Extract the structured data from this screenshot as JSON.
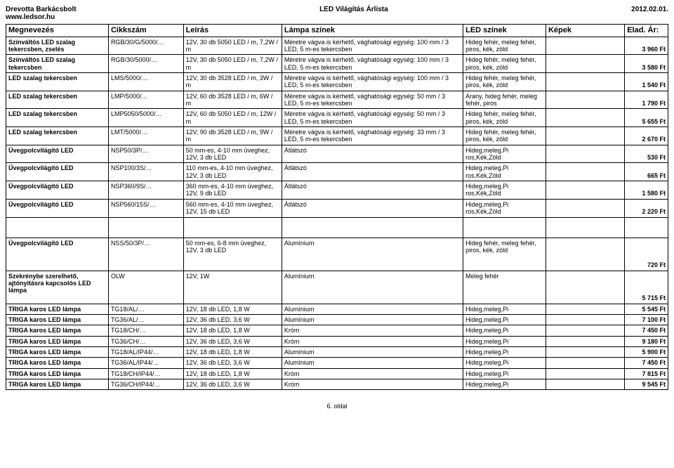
{
  "header": {
    "company": "Drevotta Barkácsbolt",
    "website": "www.ledsor.hu",
    "title": "LED Világítás Árlista",
    "date": "2012.02.01."
  },
  "columns": {
    "c1": "Megnevezés",
    "c2": "Cikkszám",
    "c3": "Leírás",
    "c4": "Lámpa színek",
    "c5": "LED színek",
    "c6": "Képek",
    "c7": "Elad. Ár:"
  },
  "rows": [
    {
      "meg": "Színváltós LED szalag tekercsben, zselés",
      "cikk": "RGB/30/G/5000/…",
      "leiras": "12V, 30 db 5050 LED / m, 7,2W / m",
      "lampa": "Méretre vágva is kérhető, vághatósági egység: 100 mm / 3 LED, 5 m-es tekercsben",
      "led": "Hideg fehér, meleg fehér, piros, kék, zöld",
      "ar": "3 960 Ft"
    },
    {
      "meg": "Színváltós LED szalag tekercsben",
      "cikk": "RGB/30/5000/…",
      "leiras": "12V, 30 db 5050 LED / m, 7,2W / m",
      "lampa": "Méretre vágva is kérhető, vághatósági egység: 100 mm / 3 LED, 5 m-es tekercsben",
      "led": "Hideg fehér, meleg fehér, piros, kék, zöld",
      "ar": "3 580 Ft"
    },
    {
      "meg": "LED szalag tekercsben",
      "cikk": "LMS/5000/…",
      "leiras": "12V, 30 db 3528 LED / m, 3W / m",
      "lampa": "Méretre vágva is kérhető, vághatósági egység: 100 mm / 3 LED, 5 m-es tekercsben",
      "led": "Hideg fehér, meleg fehér, piros, kék, zöld",
      "ar": "1 540 Ft"
    },
    {
      "meg": "LED szalag tekercsben",
      "cikk": "LMP/5000/…",
      "leiras": "12V, 60 db 3528 LED / m, 6W / m",
      "lampa": "Méretre vágva is kérhető, vághatósági egység: 50 mm / 3 LED, 5 m-es tekercsben",
      "led": "Arany, hideg fehér, meleg fehér, piros",
      "ar": "1 790 Ft"
    },
    {
      "meg": "LED szalag tekercsben",
      "cikk": "LMP5050/5000/…",
      "leiras": "12V, 60 db 5050 LED / m, 12W / m",
      "lampa": "Méretre vágva is kérhető, vághatósági egység: 50 mm / 3 LED, 5 m-es tekercsben",
      "led": "Hideg fehér, meleg fehér, piros, kék, zöld",
      "ar": "5 655 Ft"
    },
    {
      "meg": "LED szalag tekercsben",
      "cikk": "LMT/5000/…",
      "leiras": "12V, 90 db 3528 LED / m, 9W / m",
      "lampa": "Méretre vágva is kérhető, vághatósági egység: 33 mm / 3 LED, 5 m-es tekercsben",
      "led": "Hideg fehér, meleg fehér, piros, kék, zöld",
      "ar": "2 670 Ft"
    },
    {
      "meg": "Üvegpolcvilágító LED",
      "cikk": "NSP50/3P/…",
      "leiras": "50 mm-es, 4-10 mm üveghez, 12V, 3 db LED",
      "lampa": "Átlátszó",
      "led": "Hideg,meleg,Pi ros,Kék,Zöld",
      "ar": "530 Ft"
    },
    {
      "meg": "Üvegpolcvilágító LED",
      "cikk": "NSP100/3S/…",
      "leiras": "110 mm-es, 4-10 mm üveghez, 12V, 3 db LED",
      "lampa": "Átlátszó",
      "led": "Hideg,meleg,Pi ros,Kék,Zöld",
      "ar": "665 Ft"
    },
    {
      "meg": "Üvegpolcvilágító LED",
      "cikk": "NSP360/9S/…",
      "leiras": "360 mm-es, 4-10 mm üveghez, 12V, 9 db LED",
      "lampa": "Átlátszó",
      "led": "Hideg,meleg,Pi ros,Kék,Zöld",
      "ar": "1 580 Ft"
    },
    {
      "meg": "Üvegpolcvilágító LED",
      "cikk": "NSP560/15S/…",
      "leiras": "560 mm-es, 4-10 mm üveghez, 12V, 15 db LED",
      "lampa": "Átlátszó",
      "led": "Hideg,meleg,Pi ros,Kék,Zöld",
      "ar": "2 220 Ft"
    }
  ],
  "midRows": [
    {
      "meg": "Üvegpolcvilágító LED",
      "cikk": "NSS/50/3P/…",
      "leiras": "50 mm-es, 6-8 mm üveghez, 12V, 3 db LED",
      "lampa": "Alumínium",
      "led": "Hideg fehér, meleg fehér, piros, kék, zöld",
      "ar": "720 Ft"
    },
    {
      "meg": "Szekrénybe szerelhető, ajtónyitásra kapcsolós LED lámpa",
      "cikk": "OLW",
      "leiras": "12V, 1W",
      "lampa": "Alumínium",
      "led": "Meleg fehér",
      "ar": "5 715 Ft"
    }
  ],
  "botRows": [
    {
      "meg": "TRIGA karos LED lámpa",
      "cikk": "TG18/AL/…",
      "leiras": "12V, 18 db LED, 1,8 W",
      "lampa": "Alumínium",
      "led": "Hideg,meleg,Pi",
      "ar": "5 545 Ft"
    },
    {
      "meg": "TRIGA karos LED lámpa",
      "cikk": "TG36/AL/…",
      "leiras": "12V, 36 db LED, 3,6 W",
      "lampa": "Alumínium",
      "led": "Hideg,meleg,Pi",
      "ar": "7 100 Ft"
    },
    {
      "meg": "TRIGA karos LED lámpa",
      "cikk": "TG18/CH/…",
      "leiras": "12V, 18 db LED, 1,8 W",
      "lampa": "Króm",
      "led": "Hideg,meleg,Pi",
      "ar": "7 450 Ft"
    },
    {
      "meg": "TRIGA karos LED lámpa",
      "cikk": "TG36/CH/…",
      "leiras": "12V, 36 db LED, 3,6 W",
      "lampa": "Króm",
      "led": "Hideg,meleg,Pi",
      "ar": "9 180 Ft"
    },
    {
      "meg": "TRIGA karos LED lámpa",
      "cikk": "TG18/AL/IP44/…",
      "leiras": "12V, 18 db LED, 1,8 W",
      "lampa": "Alumínium",
      "led": "Hideg,meleg,Pi",
      "ar": "5 900 Ft"
    },
    {
      "meg": "TRIGA karos LED lámpa",
      "cikk": "TG36/AL/IP44/…",
      "leiras": "12V, 36 db LED, 3,6 W",
      "lampa": "Alumínium",
      "led": "Hideg,meleg,Pi",
      "ar": "7 450 Ft"
    },
    {
      "meg": "TRIGA karos LED lámpa",
      "cikk": "TG18/CH/IP44/…",
      "leiras": "12V, 18 db LED, 1,8 W",
      "lampa": "Króm",
      "led": "Hideg,meleg,Pi",
      "ar": "7 815 Ft"
    },
    {
      "meg": "TRIGA karos LED lámpa",
      "cikk": "TG36/CH/IP44/…",
      "leiras": "12V, 36 db LED, 3,6 W",
      "lampa": "Króm",
      "led": "Hideg,meleg,Pi",
      "ar": "9 545 Ft"
    }
  ],
  "footer": "6. oldal"
}
